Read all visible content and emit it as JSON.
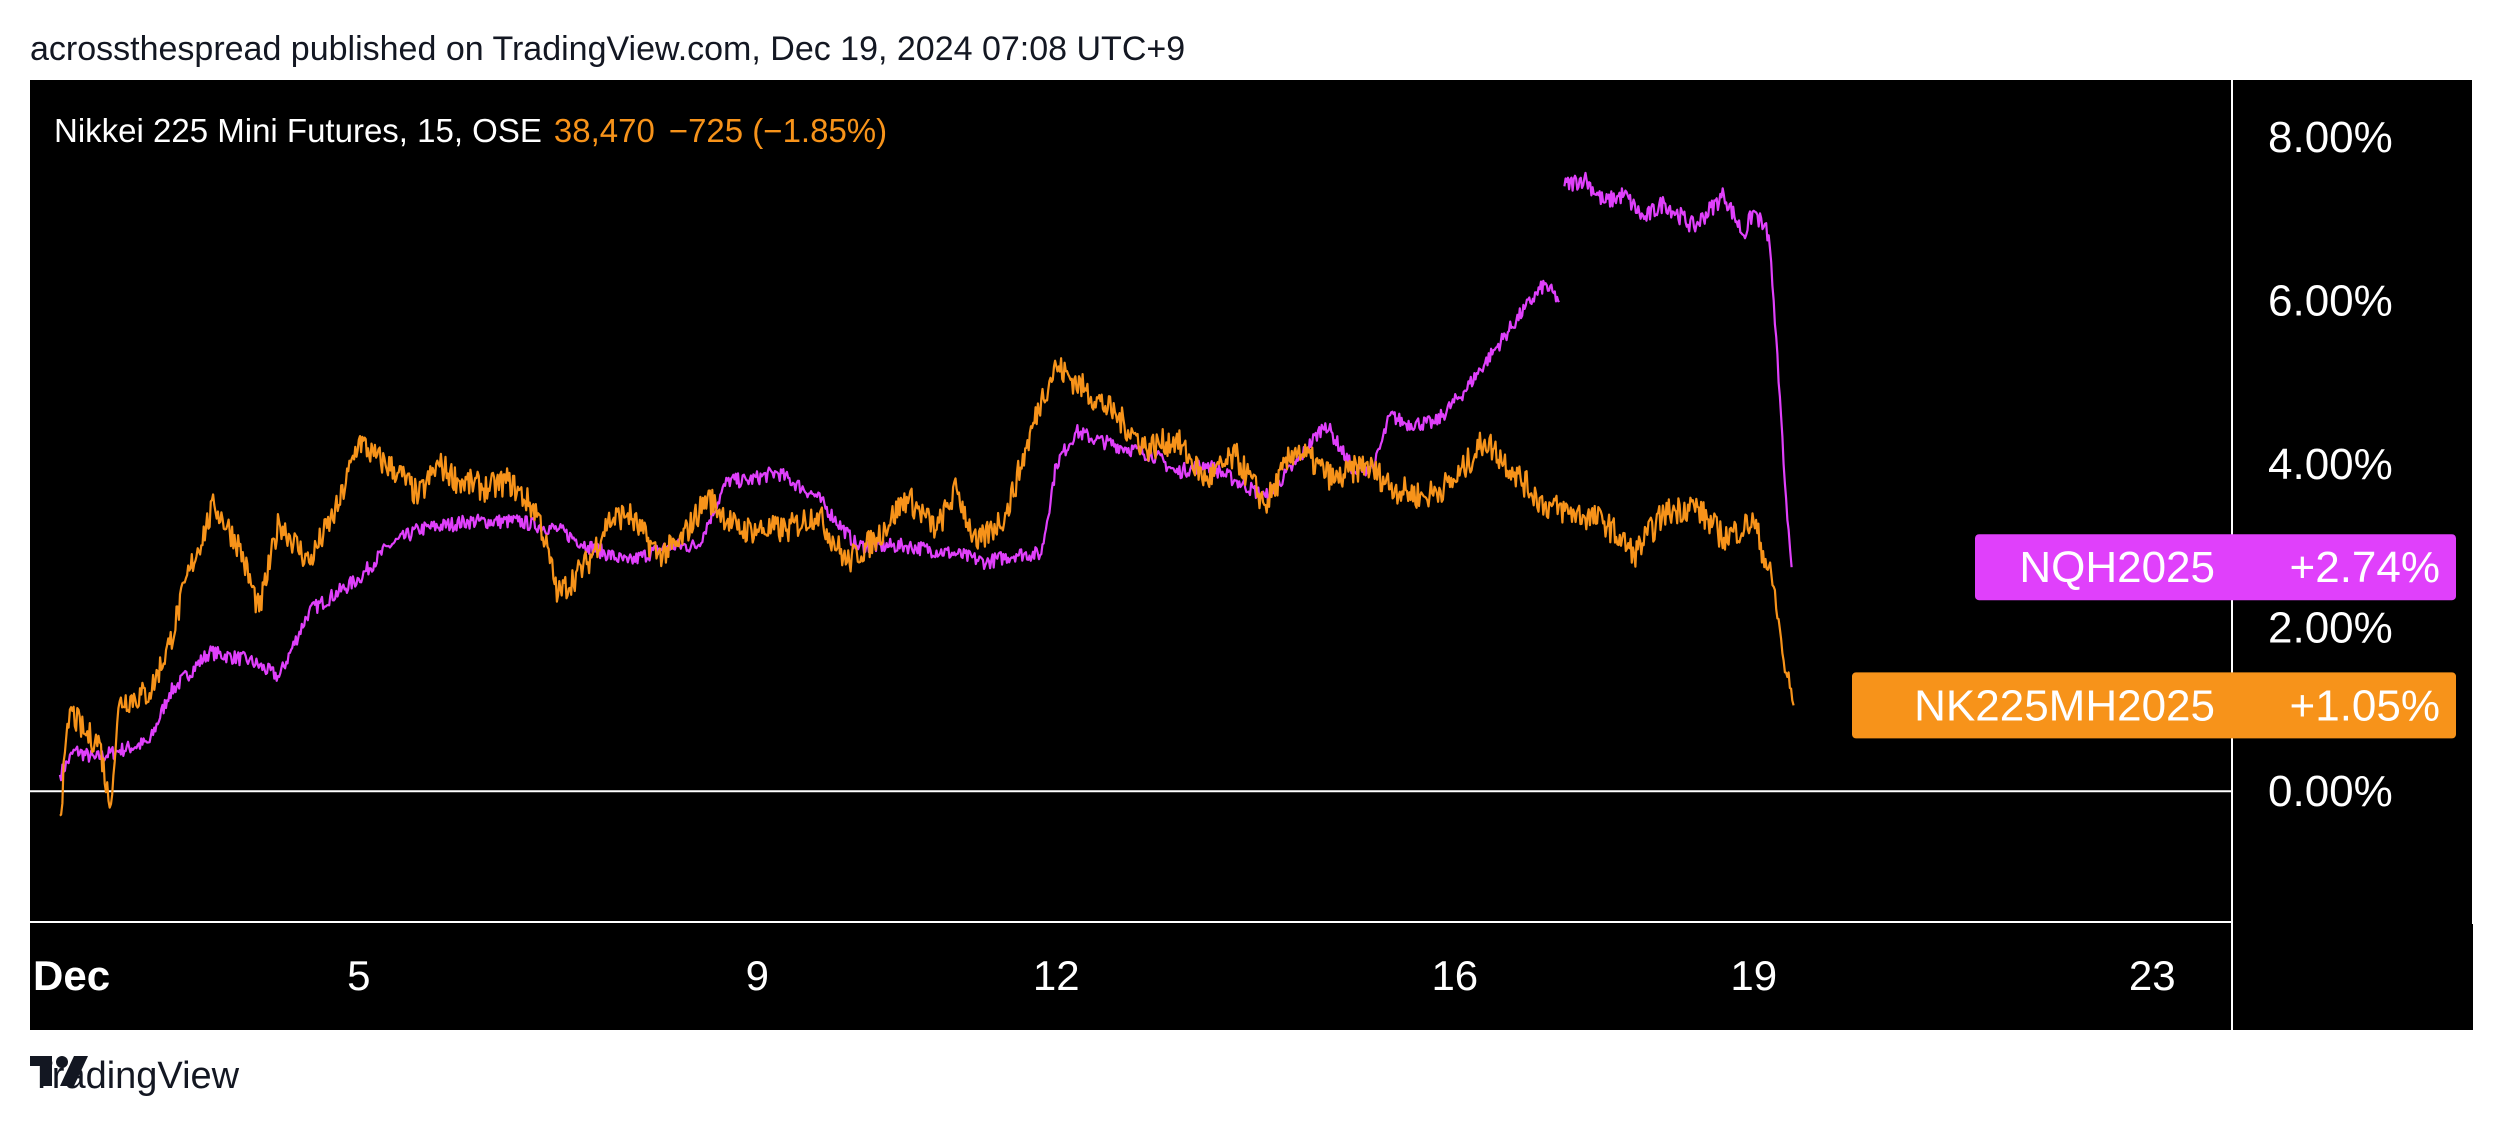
{
  "attribution": "acrossthespread published on TradingView.com, Dec 19, 2024 07:08 UTC+9",
  "header": {
    "symbol": "Nikkei 225 Mini Futures, 15, OSE",
    "last": "38,470",
    "change": "−725 (−1.85%)"
  },
  "footer": {
    "brand": "TradingView",
    "logo_icon": "tradingview-logo-icon"
  },
  "colors": {
    "background": "#000000",
    "orange": "#f7931a",
    "magenta": "#e040fb",
    "axis": "#ffffff"
  },
  "chart_data": {
    "type": "line",
    "x_unit": "day of December 2024",
    "xlim": [
      1.7,
      23.8
    ],
    "ylim": [
      -1.6,
      8.7
    ],
    "y_ticks": [
      0,
      2,
      4,
      6,
      8
    ],
    "y_tick_labels": [
      "0.00%",
      "2.00%",
      "4.00%",
      "6.00%",
      "8.00%"
    ],
    "x_ticks": [
      2,
      5,
      9,
      12,
      16,
      19,
      23
    ],
    "x_tick_labels": [
      "Dec",
      "5",
      "9",
      "12",
      "16",
      "19",
      "23"
    ],
    "zero_line": true,
    "series": [
      {
        "name": "NK225MH2025",
        "color": "#f7931a",
        "badge_value": "+1.05%",
        "last": 1.05,
        "x": [
          2.0,
          2.1,
          2.25,
          2.4,
          2.5,
          2.6,
          2.9,
          3.1,
          3.3,
          3.55,
          3.8,
          4.0,
          4.2,
          4.5,
          4.8,
          5.0,
          5.15,
          5.4,
          5.6,
          5.8,
          6.0,
          6.3,
          6.5,
          6.8,
          7.0,
          7.3,
          7.5,
          7.7,
          8.0,
          8.2,
          8.5,
          8.8,
          9.0,
          9.3,
          9.6,
          9.9,
          10.2,
          10.5,
          10.8,
          11.0,
          11.2,
          11.5,
          11.7,
          11.85,
          12.0,
          12.3,
          12.6,
          12.9,
          13.2,
          13.5,
          13.8,
          14.1,
          14.4,
          14.8,
          15.1,
          15.4,
          15.7,
          16.0,
          16.3,
          16.6,
          16.9,
          17.2,
          17.5,
          17.8,
          18.1,
          18.4,
          18.7,
          19.0,
          19.2,
          19.3,
          19.4
        ],
        "y": [
          -0.3,
          1.0,
          0.7,
          0.6,
          -0.2,
          1.1,
          1.2,
          1.8,
          2.7,
          3.5,
          3.0,
          2.2,
          3.3,
          2.8,
          3.5,
          4.3,
          4.1,
          3.9,
          3.6,
          4.0,
          3.8,
          3.7,
          3.8,
          3.4,
          2.4,
          2.8,
          3.3,
          3.4,
          2.9,
          3.0,
          3.6,
          3.2,
          3.2,
          3.2,
          3.4,
          2.8,
          3.1,
          3.6,
          3.2,
          3.7,
          3.0,
          3.4,
          4.2,
          4.8,
          5.2,
          4.9,
          4.6,
          4.2,
          4.3,
          3.8,
          4.1,
          3.5,
          4.2,
          3.8,
          4.0,
          3.7,
          3.6,
          3.8,
          4.3,
          3.9,
          3.5,
          3.4,
          3.3,
          2.9,
          3.4,
          3.5,
          3.1,
          3.3,
          2.5,
          1.6,
          1.05
        ]
      },
      {
        "name": "NQH2025",
        "color": "#e040fb",
        "badge_value": "+2.74%",
        "last": 2.74,
        "x": [
          2.0,
          2.15,
          2.35,
          2.6,
          2.9,
          3.1,
          3.5,
          3.9,
          4.2,
          4.5,
          5.0,
          5.3,
          5.6,
          6.1,
          6.6,
          7.0,
          7.3,
          7.7,
          8.1,
          8.4,
          8.7,
          8.9,
          9.2,
          9.6,
          10.0,
          10.5,
          11.0,
          11.3,
          11.6,
          11.85,
          12.0,
          12.2,
          12.4,
          12.7,
          13.0,
          13.2,
          13.5,
          13.8,
          14.1,
          14.4,
          14.7,
          15.0,
          15.2,
          15.35,
          15.5,
          15.8,
          16.1,
          16.4,
          16.7,
          16.9,
          17.05
        ],
        "y": [
          0.2,
          0.5,
          0.4,
          0.5,
          0.6,
          1.2,
          1.7,
          1.6,
          1.4,
          2.2,
          2.6,
          3.0,
          3.2,
          3.3,
          3.3,
          3.2,
          3.0,
          2.8,
          3.0,
          3.0,
          3.8,
          3.8,
          3.9,
          3.6,
          3.0,
          3.0,
          2.9,
          2.8,
          2.9,
          2.9,
          4.0,
          4.4,
          4.3,
          4.2,
          4.1,
          3.9,
          4.0,
          3.8,
          3.6,
          4.0,
          4.5,
          3.9,
          4.0,
          4.6,
          4.5,
          4.5,
          4.9,
          5.4,
          5.9,
          6.2,
          6.0
        ],
        "x2": [
          17.1,
          17.3,
          17.5,
          17.7,
          17.9,
          18.1,
          18.4,
          18.7,
          18.9,
          19.0,
          19.1,
          19.15,
          19.2,
          19.25,
          19.3,
          19.35,
          19.38
        ],
        "y2": [
          7.4,
          7.5,
          7.2,
          7.3,
          7.0,
          7.2,
          6.9,
          7.3,
          6.8,
          7.1,
          6.9,
          6.8,
          6.0,
          5.0,
          4.0,
          3.2,
          2.74
        ]
      }
    ]
  }
}
